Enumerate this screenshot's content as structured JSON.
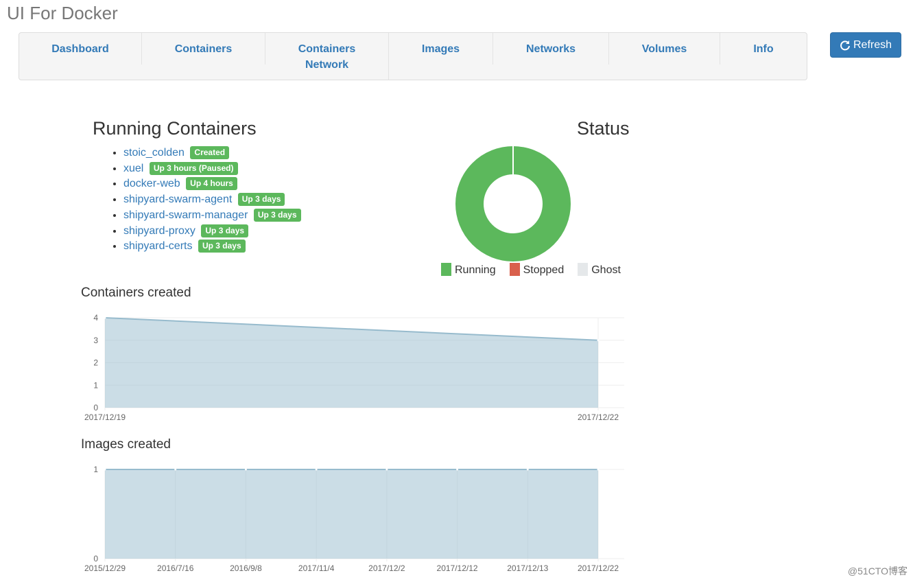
{
  "app_title": "UI For Docker",
  "nav": [
    "Dashboard",
    "Containers",
    "Containers Network",
    "Images",
    "Networks",
    "Volumes",
    "Info"
  ],
  "refresh_label": "Refresh",
  "running": {
    "title": "Running Containers",
    "items": [
      {
        "name": "stoic_colden",
        "status": "Created"
      },
      {
        "name": "xuel",
        "status": "Up 3 hours (Paused)"
      },
      {
        "name": "docker-web",
        "status": "Up 4 hours"
      },
      {
        "name": "shipyard-swarm-agent",
        "status": "Up 3 days"
      },
      {
        "name": "shipyard-swarm-manager",
        "status": "Up 3 days"
      },
      {
        "name": "shipyard-proxy",
        "status": "Up 3 days"
      },
      {
        "name": "shipyard-certs",
        "status": "Up 3 days"
      }
    ]
  },
  "status": {
    "title": "Status",
    "legend": [
      {
        "label": "Running",
        "color": "#5cb85c",
        "value": 7
      },
      {
        "label": "Stopped",
        "color": "#d9604c",
        "value": 0
      },
      {
        "label": "Ghost",
        "color": "#e5e8ea",
        "value": 0
      }
    ]
  },
  "chart_data": [
    {
      "type": "area",
      "title": "Containers created",
      "x": [
        "2017/12/19",
        "2017/12/22"
      ],
      "values": [
        4,
        3
      ],
      "ylim": [
        0,
        4
      ],
      "yticks": [
        0,
        1,
        2,
        3,
        4
      ]
    },
    {
      "type": "area",
      "title": "Images created",
      "x": [
        "2015/12/29",
        "2016/7/16",
        "2016/9/8",
        "2017/11/4",
        "2017/12/2",
        "2017/12/12",
        "2017/12/13",
        "2017/12/22"
      ],
      "values": [
        1,
        1,
        1,
        1,
        1,
        1,
        1,
        1
      ],
      "ylim": [
        0,
        1
      ],
      "yticks": [
        0,
        1
      ]
    }
  ],
  "watermark": "@51CTO博客"
}
